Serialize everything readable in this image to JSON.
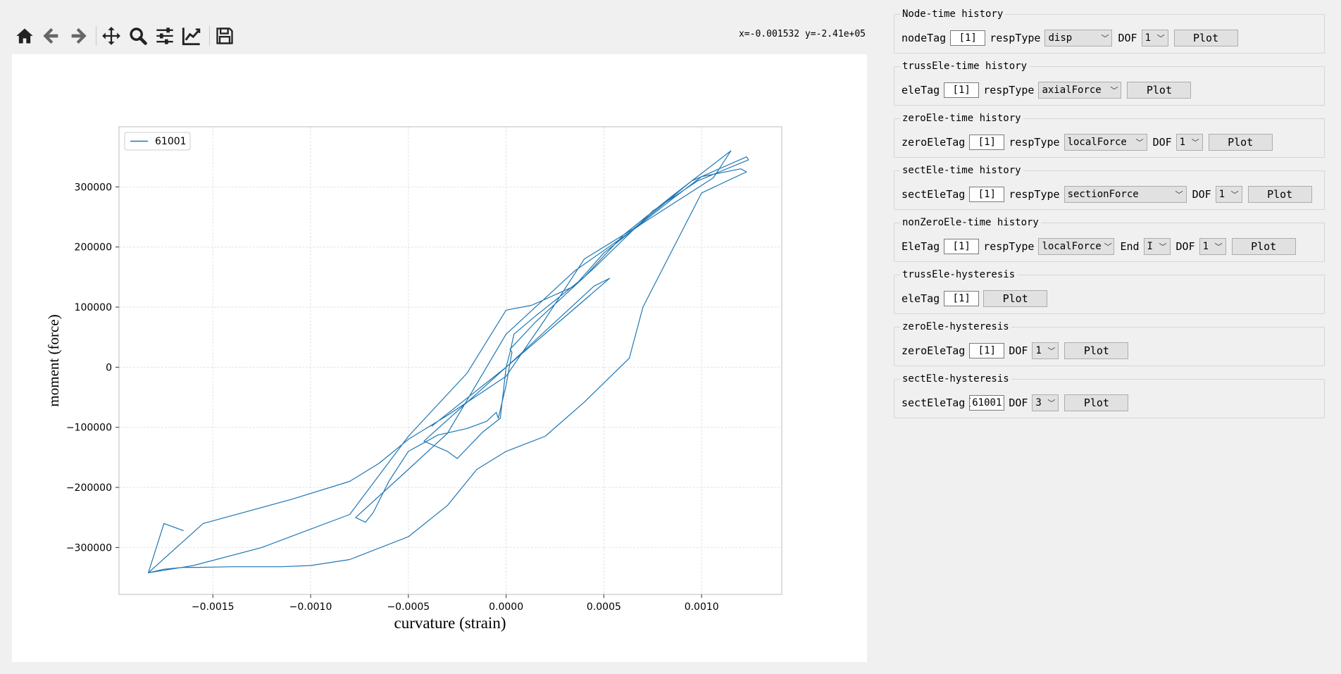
{
  "toolbar": {
    "buttons": [
      "home-icon",
      "back-arrow-icon",
      "forward-arrow-icon",
      "pan-icon",
      "zoom-icon",
      "configure-subplots-icon",
      "edit-axis-icon",
      "save-icon"
    ]
  },
  "coords_readout": "x=-0.001532 y=-2.41e+05",
  "chart_data": {
    "type": "line",
    "xlabel": "curvature (strain)",
    "ylabel": "moment (force)",
    "xlim": [
      -0.00198,
      0.00141
    ],
    "ylim": [
      -378000,
      400000
    ],
    "xticks": [
      -0.0015,
      -0.001,
      -0.0005,
      0.0,
      0.0005,
      0.001
    ],
    "xtick_labels": [
      "−0.0015",
      "−0.0010",
      "−0.0005",
      "0.0000",
      "0.0005",
      "0.0010"
    ],
    "yticks": [
      -300000,
      -200000,
      -100000,
      0,
      100000,
      200000,
      300000
    ],
    "ytick_labels": [
      "−300000",
      "−200000",
      "−100000",
      "0",
      "100000",
      "200000",
      "300000"
    ],
    "grid": true,
    "legend": "top-left",
    "series": [
      {
        "name": "61001",
        "color": "#1f77b4",
        "x": [
          0.0,
          0.00043,
          0.0,
          -0.00038,
          0.0,
          0.00053,
          0.00045,
          0.0,
          -0.0004,
          -0.00042,
          -0.0003,
          -0.00025,
          -0.00012,
          -3e-05,
          0.0,
          2e-05,
          4e-05,
          0.00015,
          0.0004,
          0.0006,
          0.00085,
          0.00115,
          0.00106,
          0.0007,
          0.00035,
          0.0,
          -0.0003,
          -0.0005,
          -0.00077,
          -0.00072,
          -0.00068,
          -0.0006,
          -0.0005,
          -0.00035,
          -0.0002,
          -0.0001,
          -5e-05,
          -4e-05,
          0.0,
          3e-05,
          2e-05,
          0.00015,
          0.00045,
          0.00075,
          0.00098,
          0.00124,
          0.00123,
          0.00095,
          0.00065,
          0.0004,
          0.0002,
          0.0,
          -0.0003,
          -0.0005,
          -0.00065,
          -0.0008,
          -0.0011,
          -0.00155,
          -0.00183,
          -0.00175,
          -0.00165,
          -0.00158,
          -0.0014,
          -0.00115,
          -0.001,
          -0.0008,
          -0.0005,
          -0.0003,
          -0.00015,
          0.0,
          0.0002,
          0.0004,
          0.00063,
          0.0007,
          0.001,
          0.00123,
          0.0012,
          0.001,
          0.00085,
          0.0005,
          0.00035,
          0.00013,
          0.0,
          -0.0002,
          -0.0005,
          -0.0008,
          -0.00125,
          -0.0016,
          -0.00183,
          -0.00175,
          -0.00165
        ],
        "y": [
          0,
          120000,
          0,
          -98000,
          0,
          148000,
          135000,
          0,
          -117000,
          -123000,
          -140000,
          -152000,
          -108000,
          -85000,
          0,
          25000,
          55000,
          85000,
          150000,
          220000,
          285000,
          360000,
          315000,
          240000,
          160000,
          55000,
          -110000,
          -170000,
          -250000,
          -258000,
          -242000,
          -190000,
          -140000,
          -113000,
          -102000,
          -90000,
          -75000,
          -85000,
          -30000,
          25000,
          30000,
          75000,
          165000,
          260000,
          310000,
          345000,
          350000,
          310000,
          230000,
          180000,
          80000,
          -15000,
          -80000,
          -120000,
          -160000,
          -190000,
          -220000,
          -260000,
          -342000,
          -336000,
          -333000,
          -333000,
          -332000,
          -332000,
          -330000,
          -320000,
          -282000,
          -230000,
          -170000,
          -140000,
          -115000,
          -58000,
          15000,
          100000,
          290000,
          325000,
          330000,
          317000,
          280000,
          190000,
          135000,
          103000,
          95000,
          -10000,
          -115000,
          -245000,
          -300000,
          -330000,
          -342000,
          -260000,
          -272000
        ]
      }
    ]
  },
  "panel": {
    "node_time": {
      "title": "Node-time history",
      "tag_label": "nodeTag",
      "tag_value": "[1]",
      "resp_label": "respType",
      "resp_value": "disp",
      "dof_label": "DOF",
      "dof_value": "1",
      "plot": "Plot"
    },
    "truss_time": {
      "title": "trussEle-time history",
      "tag_label": "eleTag",
      "tag_value": "[1]",
      "resp_label": "respType",
      "resp_value": "axialForce",
      "plot": "Plot"
    },
    "zero_time": {
      "title": "zeroEle-time history",
      "tag_label": "zeroEleTag",
      "tag_value": "[1]",
      "resp_label": "respType",
      "resp_value": "localForce",
      "dof_label": "DOF",
      "dof_value": "1",
      "plot": "Plot"
    },
    "sect_time": {
      "title": "sectEle-time history",
      "tag_label": "sectEleTag",
      "tag_value": "[1]",
      "resp_label": "respType",
      "resp_value": "sectionForce",
      "dof_label": "DOF",
      "dof_value": "1",
      "plot": "Plot"
    },
    "nonzero_time": {
      "title": "nonZeroEle-time history",
      "tag_label": "EleTag",
      "tag_value": "[1]",
      "resp_label": "respType",
      "resp_value": "localForce",
      "end_label": "End",
      "end_value": "I",
      "dof_label": "DOF",
      "dof_value": "1",
      "plot": "Plot"
    },
    "truss_hyst": {
      "title": "trussEle-hysteresis",
      "tag_label": "eleTag",
      "tag_value": "[1]",
      "plot": "Plot"
    },
    "zero_hyst": {
      "title": "zeroEle-hysteresis",
      "tag_label": "zeroEleTag",
      "tag_value": "[1]",
      "dof_label": "DOF",
      "dof_value": "1",
      "plot": "Plot"
    },
    "sect_hyst": {
      "title": "sectEle-hysteresis",
      "tag_label": "sectEleTag",
      "tag_value": "[61001]",
      "dof_label": "DOF",
      "dof_value": "3",
      "plot": "Plot"
    }
  }
}
